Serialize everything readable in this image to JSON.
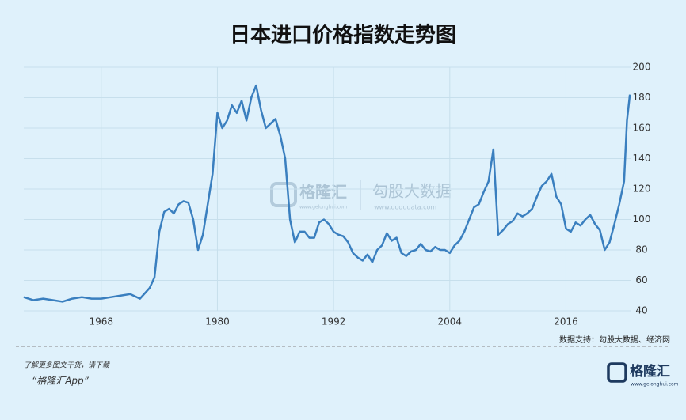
{
  "chart_data": {
    "type": "line",
    "title": "日本进口价格指数走势图",
    "x": [
      1960,
      1961,
      1962,
      1963,
      1964,
      1965,
      1966,
      1967,
      1968,
      1969,
      1970,
      1971,
      1972,
      1973,
      1973.5,
      1974,
      1974.5,
      1975,
      1975.5,
      1976,
      1976.5,
      1977,
      1977.5,
      1978,
      1978.5,
      1979,
      1979.5,
      1980,
      1980.5,
      1981,
      1981.5,
      1982,
      1982.5,
      1983,
      1983.5,
      1984,
      1984.5,
      1985,
      1985.5,
      1986,
      1986.5,
      1987,
      1987.5,
      1988,
      1988.5,
      1989,
      1989.5,
      1990,
      1990.5,
      1991,
      1991.5,
      1992,
      1992.5,
      1993,
      1993.5,
      1994,
      1994.5,
      1995,
      1995.5,
      1996,
      1996.5,
      1997,
      1997.5,
      1998,
      1998.5,
      1999,
      1999.5,
      2000,
      2000.5,
      2001,
      2001.5,
      2002,
      2002.5,
      2003,
      2003.5,
      2004,
      2004.5,
      2005,
      2005.5,
      2006,
      2006.5,
      2007,
      2007.5,
      2008,
      2008.5,
      2009,
      2009.5,
      2010,
      2010.5,
      2011,
      2011.5,
      2012,
      2012.5,
      2013,
      2013.5,
      2014,
      2014.5,
      2015,
      2015.5,
      2016,
      2016.5,
      2017,
      2017.5,
      2018,
      2018.5,
      2019,
      2019.5,
      2020,
      2020.5,
      2021,
      2021.5,
      2022,
      2022.3,
      2022.6
    ],
    "series": [
      {
        "name": "日本进口价格指数",
        "color": "#3a7fbf",
        "values": [
          49,
          47,
          48,
          47,
          46,
          48,
          49,
          48,
          48,
          49,
          50,
          51,
          48,
          55,
          62,
          92,
          105,
          107,
          104,
          110,
          112,
          111,
          100,
          80,
          90,
          110,
          130,
          170,
          160,
          165,
          175,
          170,
          178,
          165,
          180,
          188,
          172,
          160,
          163,
          166,
          155,
          140,
          100,
          85,
          92,
          92,
          88,
          88,
          98,
          100,
          97,
          92,
          90,
          89,
          85,
          78,
          75,
          73,
          77,
          72,
          80,
          83,
          91,
          86,
          88,
          78,
          76,
          79,
          80,
          84,
          80,
          79,
          82,
          80,
          80,
          78,
          83,
          86,
          92,
          100,
          108,
          110,
          118,
          125,
          146,
          90,
          93,
          97,
          99,
          104,
          102,
          104,
          107,
          115,
          122,
          125,
          130,
          115,
          110,
          94,
          92,
          98,
          96,
          100,
          103,
          97,
          93,
          80,
          85,
          97,
          110,
          125,
          165,
          182
        ]
      }
    ],
    "xlim": [
      1960,
      2022.75
    ],
    "xticks": [
      1968,
      1980,
      1992,
      2004,
      2016
    ],
    "ylim": [
      40,
      200
    ],
    "yticks": [
      40,
      60,
      80,
      100,
      120,
      140,
      160,
      180,
      200
    ],
    "grid": true,
    "source": "数据支持：勾股大数据、经济网",
    "watermark": {
      "brand": "格隆汇",
      "brand_url": "www.gelonghui.com",
      "partner": "勾股大数据",
      "partner_url": "www.gogudata.com"
    },
    "footer": {
      "line1": "了解更多图文干货，请下载",
      "line2": "“格隆汇App”",
      "logo": "格隆汇",
      "logo_url": "www.gelonghui.com"
    }
  }
}
